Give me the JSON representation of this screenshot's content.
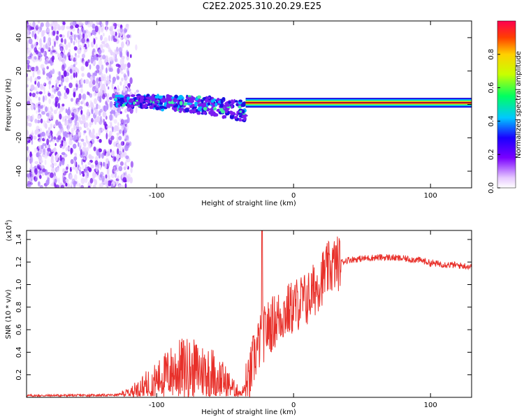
{
  "title": "C2E2.2025.310.20.29.E25",
  "chart_data": [
    {
      "type": "heatmap",
      "xlabel": "Height of straight line (km)",
      "ylabel": "Frequency (Hz)",
      "xlim": [
        -195,
        130
      ],
      "ylim": [
        -50,
        50
      ],
      "xticks": [
        -100,
        0,
        100
      ],
      "xtick_labels": [
        "-100",
        "0",
        "100"
      ],
      "yticks": [
        -40,
        -20,
        0,
        20,
        40
      ],
      "ytick_labels": [
        "-40",
        "-20",
        "0",
        "20",
        "40"
      ],
      "colorbar": {
        "label": "Normalized spectral amplitude",
        "range": [
          0,
          1
        ],
        "ticks": [
          0,
          0.2,
          0.4,
          0.6,
          0.8
        ],
        "tick_labels": [
          "0.0",
          "0.2",
          "0.4",
          "0.6",
          "0.8"
        ]
      },
      "features": [
        {
          "name": "broadband noise",
          "x_range": [
            -195,
            -120
          ],
          "freq_range": [
            -50,
            50
          ],
          "amplitude": 0.2
        },
        {
          "name": "scattered signal",
          "x_range": [
            -130,
            -35
          ],
          "freq_center": [
            2,
            -8
          ],
          "amplitude": 0.4
        },
        {
          "name": "steady tone",
          "x_range": [
            -35,
            130
          ],
          "freq": 1,
          "amplitude": 1.0
        }
      ]
    },
    {
      "type": "line",
      "xlabel": "Height of straight line (km)",
      "ylabel": "SNR (10 * v/v)",
      "y_exponent_label": "(x10",
      "y_exponent_sup": "4",
      "y_exponent_close": ")",
      "xlim": [
        -195,
        130
      ],
      "ylim": [
        0,
        1.48
      ],
      "xticks": [
        -100,
        0,
        100
      ],
      "xtick_labels": [
        "-100",
        "0",
        "100"
      ],
      "yticks": [
        0.2,
        0.4,
        0.6,
        0.8,
        1.0,
        1.2,
        1.4
      ],
      "ytick_labels": [
        "0.2",
        "0.4",
        "0.6",
        "0.8",
        "1.0",
        "1.2",
        "1.4"
      ],
      "series": [
        {
          "name": "SNR",
          "color": "#e8302a",
          "x": [
            -195,
            -130,
            -120,
            -110,
            -100,
            -90,
            -80,
            -70,
            -60,
            -50,
            -42,
            -38,
            -33,
            -30,
            -26,
            -24,
            -22,
            -20,
            -15,
            -10,
            -5,
            0,
            5,
            10,
            15,
            20,
            25,
            30,
            40,
            50,
            60,
            70,
            80,
            90,
            95,
            100,
            110,
            120,
            130
          ],
          "y": [
            0.015,
            0.02,
            0.04,
            0.1,
            0.15,
            0.22,
            0.26,
            0.24,
            0.22,
            0.14,
            0.06,
            0.04,
            0.1,
            0.3,
            0.45,
            0.5,
            0.55,
            0.6,
            0.66,
            0.72,
            0.76,
            0.8,
            0.85,
            0.87,
            0.95,
            1.05,
            1.13,
            1.18,
            1.22,
            1.23,
            1.24,
            1.24,
            1.23,
            1.22,
            1.21,
            1.19,
            1.18,
            1.17,
            1.16
          ]
        }
      ],
      "spike": {
        "x": -23,
        "y": 1.48
      }
    }
  ]
}
